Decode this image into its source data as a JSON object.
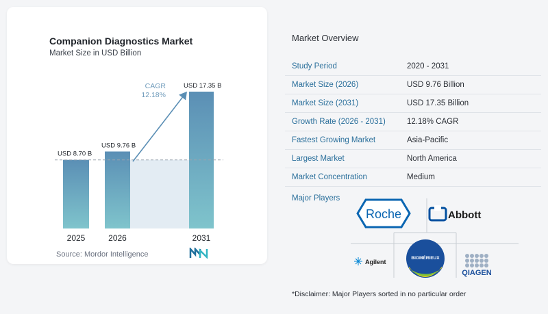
{
  "chart": {
    "title": "Companion Diagnostics Market",
    "subtitle": "Market Size in USD Billion",
    "source": "Source:  Mordor Intelligence",
    "cagr_label": "CAGR",
    "cagr_value": "12.18%"
  },
  "chart_data": {
    "type": "bar",
    "title": "Companion Diagnostics Market",
    "subtitle": "Market Size in USD Billion",
    "categories": [
      "2025",
      "2026",
      "2031"
    ],
    "values": [
      8.7,
      9.76,
      17.35
    ],
    "data_labels": [
      "USD 8.70 B",
      "USD 9.76 B",
      "USD 17.35 B"
    ],
    "annotation": {
      "label": "CAGR",
      "value": "12.18%"
    },
    "grid": false,
    "colors": {
      "bar_top": "#5b8fb5",
      "bar_bottom": "#7fc4cc",
      "band": "#e3ecf3"
    }
  },
  "overview": {
    "title": "Market Overview",
    "rows": [
      {
        "label": "Study Period",
        "value": "2020 - 2031"
      },
      {
        "label": "Market Size (2026)",
        "value": "USD 9.76 Billion"
      },
      {
        "label": "Market Size (2031)",
        "value": "USD 17.35 Billion"
      },
      {
        "label": "Growth Rate (2026 - 2031)",
        "value": "12.18% CAGR"
      },
      {
        "label": "Fastest Growing Market",
        "value": "Asia-Pacific"
      },
      {
        "label": "Largest Market",
        "value": "North America"
      },
      {
        "label": "Market Concentration",
        "value": "Medium"
      }
    ]
  },
  "players": {
    "label": "Major Players",
    "logos": [
      "Roche",
      "Abbott",
      "Agilent",
      "BIOMÉRIEUX",
      "QIAGEN"
    ]
  },
  "disclaimer": "*Disclaimer: Major Players sorted in no particular order"
}
